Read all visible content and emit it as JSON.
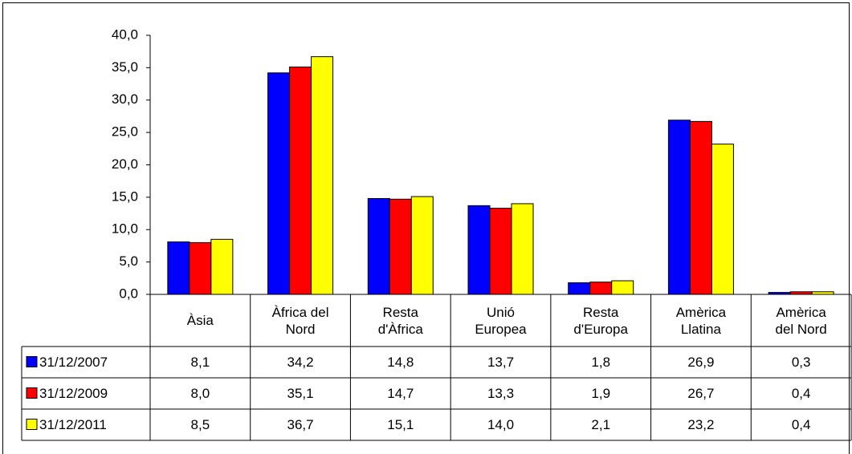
{
  "chart_data": {
    "type": "bar",
    "categories": [
      "Àsia",
      "Àfrica del Nord",
      "Resta d'Àfrica",
      "Unió Europea",
      "Resta d'Europa",
      "Amèrica Llatina",
      "Amèrica del Nord"
    ],
    "series": [
      {
        "name": "31/12/2007",
        "color": "#0000ff",
        "values": [
          8.1,
          34.2,
          14.8,
          13.7,
          1.8,
          26.9,
          0.3
        ],
        "value_labels": [
          "8,1",
          "34,2",
          "14,8",
          "13,7",
          "1,8",
          "26,9",
          "0,3"
        ]
      },
      {
        "name": "31/12/2009",
        "color": "#ff0000",
        "values": [
          8.0,
          35.1,
          14.7,
          13.3,
          1.9,
          26.7,
          0.4
        ],
        "value_labels": [
          "8,0",
          "35,1",
          "14,7",
          "13,3",
          "1,9",
          "26,7",
          "0,4"
        ]
      },
      {
        "name": "31/12/2011",
        "color": "#ffff00",
        "values": [
          8.5,
          36.7,
          15.1,
          14.0,
          2.1,
          23.2,
          0.4
        ],
        "value_labels": [
          "8,5",
          "36,7",
          "15,1",
          "14,0",
          "2,1",
          "23,2",
          "0,4"
        ]
      }
    ],
    "ylim": [
      0,
      40
    ],
    "yticks": [
      {
        "value": 0,
        "label": "0,0"
      },
      {
        "value": 5,
        "label": "5,0"
      },
      {
        "value": 10,
        "label": "10,0"
      },
      {
        "value": 15,
        "label": "15,0"
      },
      {
        "value": 20,
        "label": "20,0"
      },
      {
        "value": 25,
        "label": "25,0"
      },
      {
        "value": 30,
        "label": "30,0"
      },
      {
        "value": 35,
        "label": "35,0"
      },
      {
        "value": 40,
        "label": "40,0"
      }
    ],
    "grid": false
  }
}
